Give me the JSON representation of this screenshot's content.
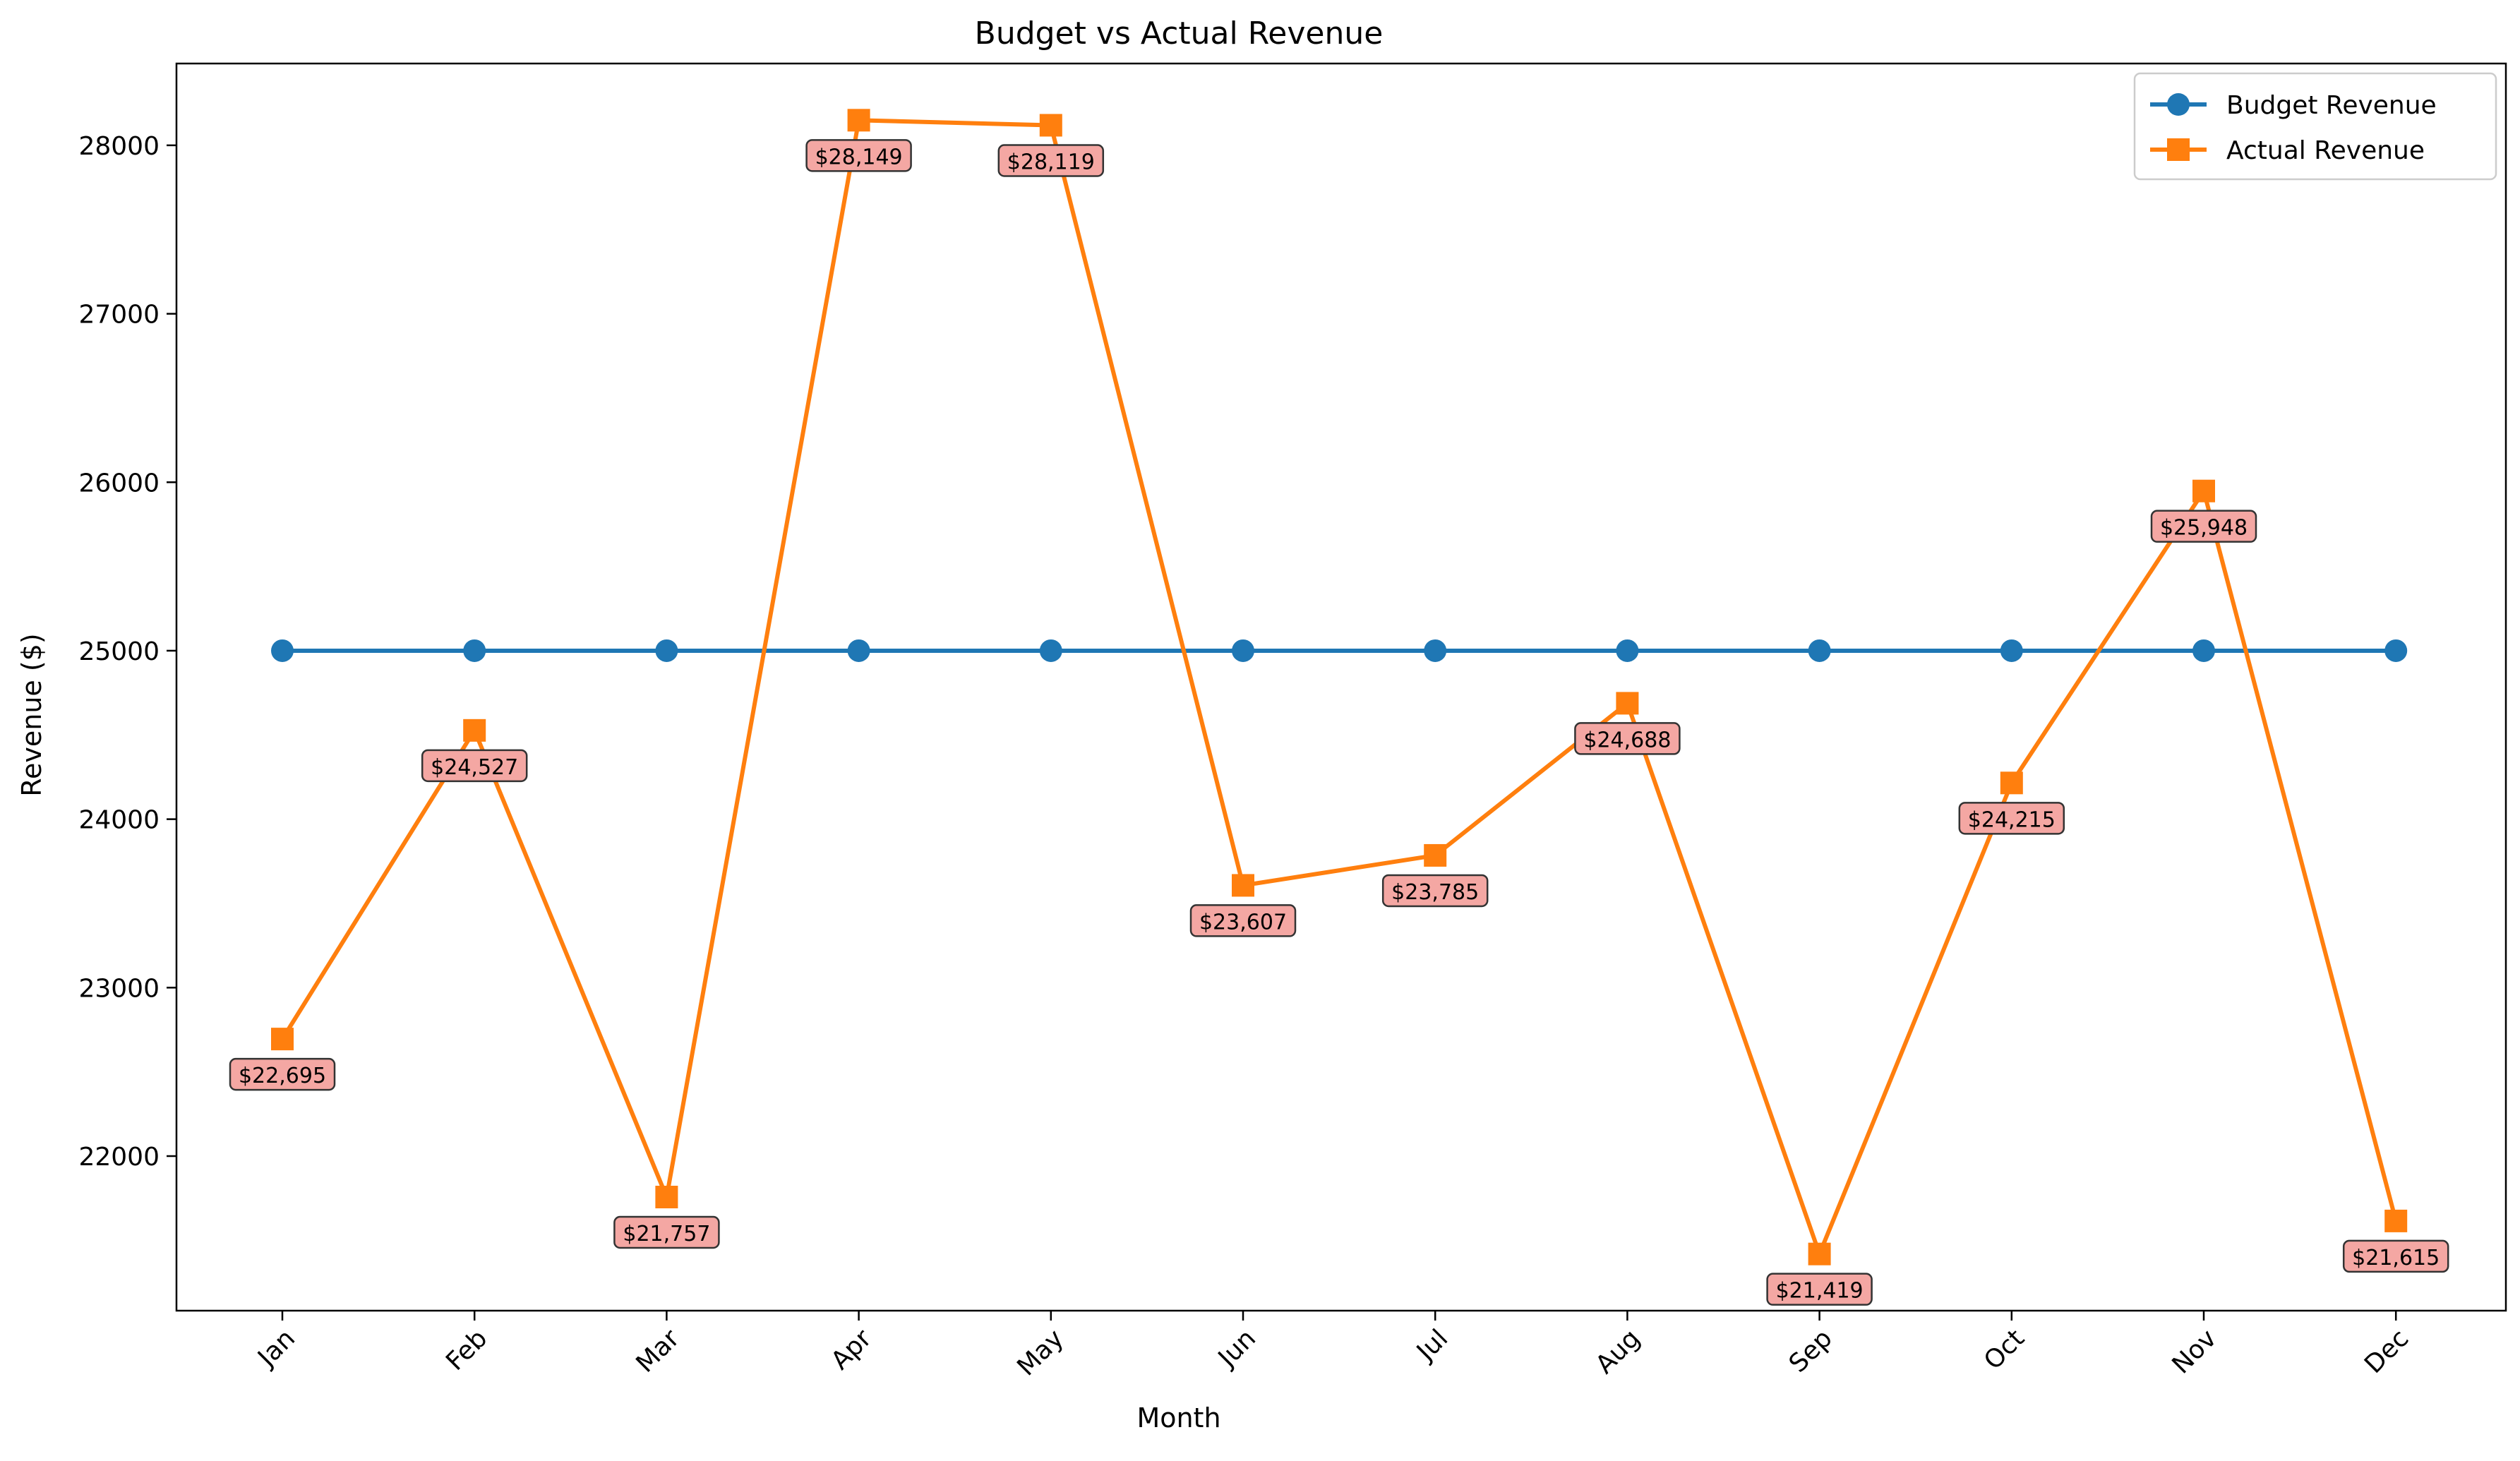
{
  "chart_data": {
    "type": "line",
    "title": "Budget vs Actual Revenue",
    "xlabel": "Month",
    "ylabel": "Revenue ($)",
    "categories": [
      "Jan",
      "Feb",
      "Mar",
      "Apr",
      "May",
      "Jun",
      "Jul",
      "Aug",
      "Sep",
      "Oct",
      "Nov",
      "Dec"
    ],
    "series": [
      {
        "name": "Budget Revenue",
        "color": "#1f77b4",
        "marker": "circle",
        "values": [
          25000,
          25000,
          25000,
          25000,
          25000,
          25000,
          25000,
          25000,
          25000,
          25000,
          25000,
          25000
        ]
      },
      {
        "name": "Actual Revenue",
        "color": "#ff7f0e",
        "marker": "square",
        "values": [
          22695,
          24527,
          21757,
          28149,
          28119,
          23607,
          23785,
          24688,
          21419,
          24215,
          25948,
          21615
        ]
      }
    ],
    "data_labels": [
      "$22,695",
      "$24,527",
      "$21,757",
      "$28,149",
      "$28,119",
      "$23,607",
      "$23,785",
      "$24,688",
      "$21,419",
      "$24,215",
      "$25,948",
      "$21,615"
    ],
    "data_label_style": {
      "fill": "#f4a7a3",
      "border": "#333333"
    },
    "yticks": [
      22000,
      23000,
      24000,
      25000,
      26000,
      27000,
      28000
    ],
    "ytick_labels": [
      "22000",
      "23000",
      "24000",
      "25000",
      "26000",
      "27000",
      "28000"
    ],
    "ylim": [
      21082.5,
      28485.5
    ],
    "grid": false,
    "legend_position": "top-right"
  }
}
